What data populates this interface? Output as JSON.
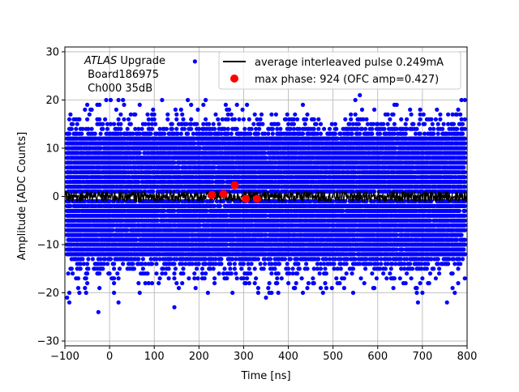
{
  "chart_data": {
    "type": "scatter",
    "title": "",
    "xlabel": "Time [ns]",
    "ylabel": "Amplitude [ADC Counts]",
    "xlim": [
      -100,
      800
    ],
    "ylim": [
      -31,
      31
    ],
    "xticks": [
      -100,
      0,
      100,
      200,
      300,
      400,
      500,
      600,
      700,
      800
    ],
    "yticks": [
      -30,
      -20,
      -10,
      0,
      10,
      20,
      30
    ],
    "xtick_labels": [
      "−100",
      "0",
      "100",
      "200",
      "300",
      "400",
      "500",
      "600",
      "700",
      "800"
    ],
    "ytick_labels": [
      "−30",
      "−20",
      "−10",
      "0",
      "10",
      "20",
      "30"
    ],
    "grid": true,
    "legend_position": "top-right",
    "annotation": {
      "italic": "ATLAS",
      "rest": " Upgrade",
      "line2": " Board186975",
      "line3": " Ch000 35dB"
    },
    "colors": {
      "samples": "#0000ff",
      "average": "#000000",
      "max_phase": "#ff0000"
    },
    "series": [
      {
        "name": "average interleaved pulse 0.249mA",
        "kind": "line",
        "color": "#000000",
        "x_range": [
          -100,
          800
        ],
        "level": 0,
        "noise_amplitude": 1.2
      },
      {
        "name": "max phase: 924 (OFC amp=0.427)",
        "kind": "scatter",
        "color": "#ff0000",
        "points": [
          {
            "x": 229,
            "y": 0.3
          },
          {
            "x": 255,
            "y": 0.5
          },
          {
            "x": 280,
            "y": 2.3
          },
          {
            "x": 305,
            "y": -0.5
          },
          {
            "x": 330,
            "y": -0.5
          }
        ]
      },
      {
        "kind": "scatter",
        "color": "#0000ff",
        "description_note": "",
        "x_range": [
          -95,
          795
        ],
        "y_levels_dense": [
          -12,
          12
        ],
        "y_levels_sparse": [
          -20,
          20
        ],
        "outliers": [
          {
            "x": 191,
            "y": 28
          },
          {
            "x": -25,
            "y": -24
          },
          {
            "x": 145,
            "y": -23
          },
          {
            "x": -95,
            "y": -21
          },
          {
            "x": -90,
            "y": -22
          },
          {
            "x": 20,
            "y": -22
          },
          {
            "x": 350,
            "y": -21
          },
          {
            "x": 690,
            "y": -22
          },
          {
            "x": 755,
            "y": -22
          },
          {
            "x": 560,
            "y": 21
          },
          {
            "x": 795,
            "y": 20
          },
          {
            "x": 30,
            "y": 20
          }
        ]
      }
    ]
  }
}
